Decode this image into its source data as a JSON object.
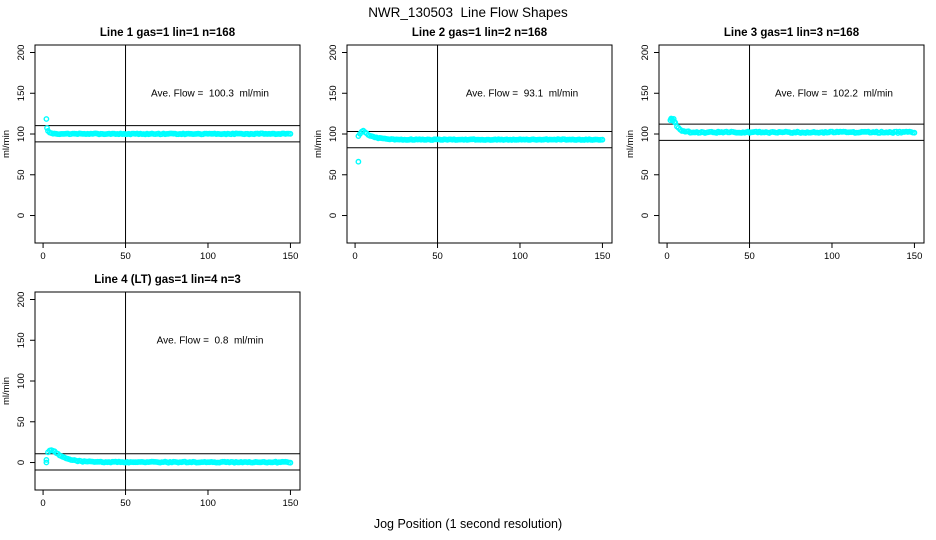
{
  "figure": {
    "title": "NWR_130503  Line Flow Shapes",
    "xlabel": "Jog Position (1 second resolution)",
    "background_color": "#ffffff",
    "point_color": "#00ffff",
    "axis_color": "#000000",
    "marker": "open-circle"
  },
  "chart_data": [
    {
      "type": "scatter",
      "title": "Line 1 gas=1 lin=1 n=168",
      "annotation": "Ave. Flow =  100.3  ml/min",
      "ave_flow_ml_min": 100.3,
      "ylabel": "ml/min",
      "xticks": [
        0,
        50,
        100,
        150
      ],
      "yticks": [
        0,
        50,
        100,
        150,
        200
      ],
      "xlim": [
        -4.9,
        155.8
      ],
      "ylim": [
        -33.7,
        209.2
      ],
      "vline_x": 50,
      "hlines": [
        110.3,
        90.3
      ],
      "grid": false,
      "segments": [
        {
          "kind": "points",
          "pts": [
            [
              2,
              118.4
            ],
            [
              2.4,
              107.4
            ]
          ]
        },
        {
          "kind": "decay",
          "x0": 3,
          "x1": 150,
          "step": 1,
          "settle": 100.2,
          "amp": 4.0,
          "tau": 1.4,
          "noise": 0.55
        }
      ]
    },
    {
      "type": "scatter",
      "title": "Line 2 gas=1 lin=2 n=168",
      "annotation": "Ave. Flow =  93.1  ml/min",
      "ave_flow_ml_min": 93.1,
      "ylabel": "ml/min",
      "xticks": [
        0,
        50,
        100,
        150
      ],
      "yticks": [
        0,
        50,
        100,
        150,
        200
      ],
      "xlim": [
        -4.9,
        155.8
      ],
      "ylim": [
        -33.7,
        209.2
      ],
      "vline_x": 50,
      "hlines": [
        103.1,
        83.1
      ],
      "grid": false,
      "segments": [
        {
          "kind": "points",
          "pts": [
            [
              2,
              66.0
            ],
            [
              2,
              97.5
            ],
            [
              3,
              100.3
            ],
            [
              4,
              102.9
            ]
          ]
        },
        {
          "kind": "decay",
          "x0": 5,
          "x1": 150,
          "step": 1,
          "settle": 93.1,
          "amp": 10.5,
          "tau": 5.5,
          "noise": 0.5
        }
      ]
    },
    {
      "type": "scatter",
      "title": "Line 3 gas=1 lin=3 n=168",
      "annotation": "Ave. Flow =  102.2  ml/min",
      "ave_flow_ml_min": 102.2,
      "ylabel": "ml/min",
      "xticks": [
        0,
        50,
        100,
        150
      ],
      "yticks": [
        0,
        50,
        100,
        150,
        200
      ],
      "xlim": [
        -4.9,
        155.8
      ],
      "ylim": [
        -33.7,
        209.2
      ],
      "vline_x": 50,
      "hlines": [
        112.2,
        92.2
      ],
      "grid": false,
      "segments": [
        {
          "kind": "points",
          "pts": [
            [
              2,
              117.0
            ],
            [
              2.5,
              119.0
            ],
            [
              3,
              118.2
            ],
            [
              3.5,
              116.3
            ],
            [
              4,
              118.5
            ],
            [
              4.5,
              115.0
            ]
          ]
        },
        {
          "kind": "decay",
          "x0": 5,
          "x1": 150,
          "step": 1,
          "settle": 102.1,
          "amp": 11.0,
          "tau": 2.4,
          "noise": 0.9
        }
      ]
    },
    {
      "type": "scatter",
      "title": "Line 4 (LT) gas=1 lin=4 n=3",
      "annotation": "Ave. Flow =  0.8  ml/min",
      "ave_flow_ml_min": 0.8,
      "ylabel": "ml/min",
      "xticks": [
        0,
        50,
        100,
        150
      ],
      "yticks": [
        0,
        50,
        100,
        150,
        200
      ],
      "xlim": [
        -4.9,
        155.8
      ],
      "ylim": [
        -33.7,
        209.2
      ],
      "vline_x": 50,
      "hlines": [
        10.8,
        -9.2
      ],
      "grid": false,
      "segments": [
        {
          "kind": "points",
          "pts": [
            [
              2,
              0.0
            ],
            [
              2,
              3.2
            ],
            [
              3,
              12.5
            ],
            [
              4,
              14.8
            ],
            [
              5,
              15.2
            ],
            [
              6,
              14.4
            ]
          ]
        },
        {
          "kind": "decay",
          "x0": 7,
          "x1": 150,
          "step": 1,
          "settle": 0.4,
          "amp": 13.5,
          "tau": 6.5,
          "noise": 0.6
        }
      ]
    }
  ]
}
